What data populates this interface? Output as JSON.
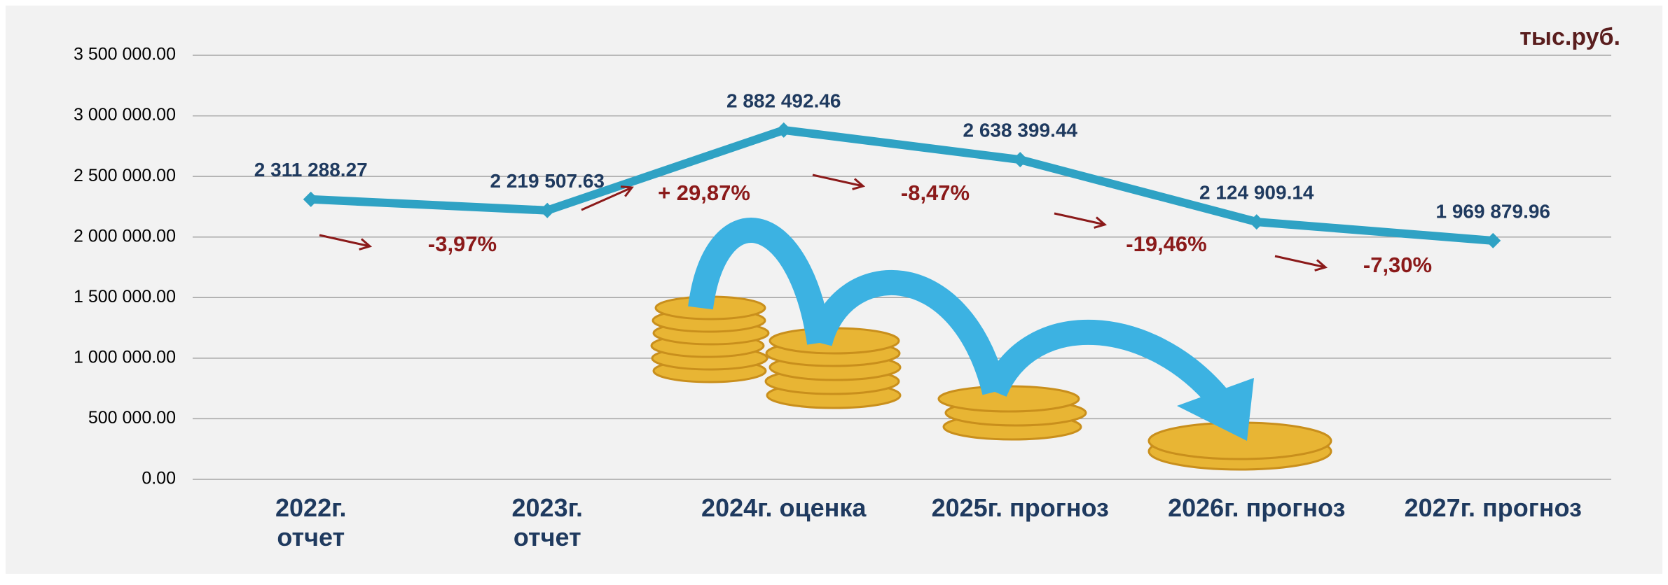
{
  "chart_data": {
    "type": "line",
    "unit_label": "тыс.руб.",
    "categories": [
      "2022г.\nотчет",
      "2023г.\nотчет",
      "2024г. оценка",
      "2025г. прогноз",
      "2026г. прогноз",
      "2027г. прогноз"
    ],
    "series": [
      {
        "color": "#2fa2c4",
        "values": [
          2311288.27,
          2219507.63,
          2882492.46,
          2638399.44,
          2124909.14,
          1969879.96
        ],
        "value_labels": [
          "2 311 288.27",
          "2 219 507.63",
          "2 882 492.46",
          "2 638 399.44",
          "2 124 909.14",
          "1 969 879.96"
        ]
      }
    ],
    "annotations": [
      "-3,97%",
      "+ 29,87%",
      "-8,47%",
      "-19,46%",
      "-7,30%"
    ],
    "ylim": [
      0,
      3500000
    ],
    "yticks": [
      {
        "value": 0,
        "label": "0.00"
      },
      {
        "value": 500000,
        "label": "500 000.00"
      },
      {
        "value": 1000000,
        "label": "1 000 000.00"
      },
      {
        "value": 1500000,
        "label": "1 500 000.00"
      },
      {
        "value": 2000000,
        "label": "2 000 000.00"
      },
      {
        "value": 2500000,
        "label": "2 500 000.00"
      },
      {
        "value": 3000000,
        "label": "3 000 000.00"
      },
      {
        "value": 3500000,
        "label": "3 500 000.00"
      }
    ],
    "grid": true
  }
}
